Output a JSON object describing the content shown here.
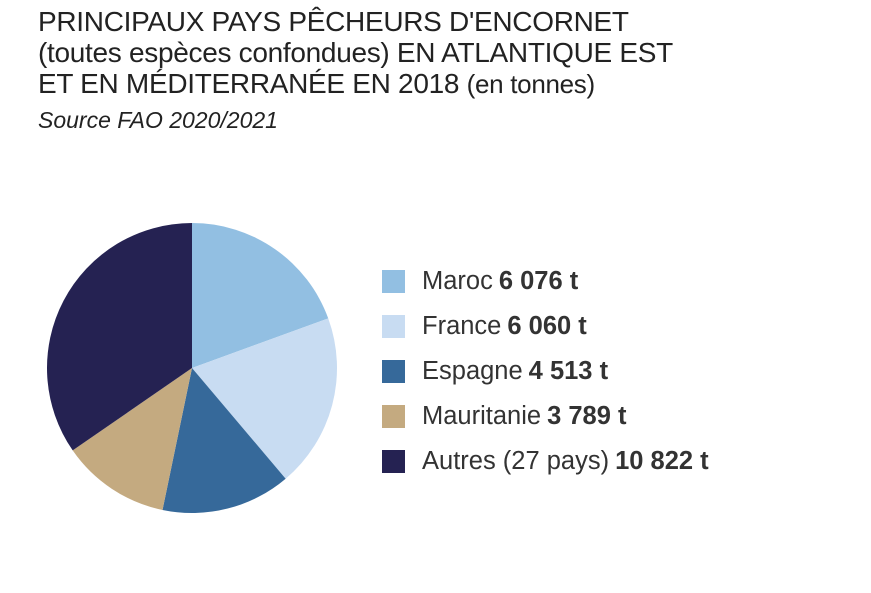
{
  "title_lines": [
    "PRINCIPAUX PAYS PÊCHEURS D'ENCORNET",
    "(toutes espèces confondues) EN ATLANTIQUE EST",
    "ET EN MÉDITERRANÉE EN 2018"
  ],
  "title_unit": "(en tonnes)",
  "source": "Source FAO 2020/2021",
  "chart_data": {
    "type": "pie",
    "title": "PRINCIPAUX PAYS PÊCHEURS D'ENCORNET (toutes espèces confondues) EN ATLANTIQUE EST ET EN MÉDITERRANÉE EN 2018 (en tonnes)",
    "subtitle": "Source FAO 2020/2021",
    "unit": "t",
    "legend_position": "right",
    "slices": [
      {
        "label": "Maroc",
        "value": 6076,
        "value_label": "6 076 t",
        "color": "#92bfe2"
      },
      {
        "label": "France",
        "value": 6060,
        "value_label": "6 060 t",
        "color": "#c8dcf2"
      },
      {
        "label": "Espagne",
        "value": 4513,
        "value_label": "4 513 t",
        "color": "#36699a"
      },
      {
        "label": "Mauritanie",
        "value": 3789,
        "value_label": "3 789 t",
        "color": "#c4aa80"
      },
      {
        "label": "Autres (27 pays)",
        "value": 10822,
        "value_label": "10 822 t",
        "color": "#252252"
      }
    ]
  }
}
